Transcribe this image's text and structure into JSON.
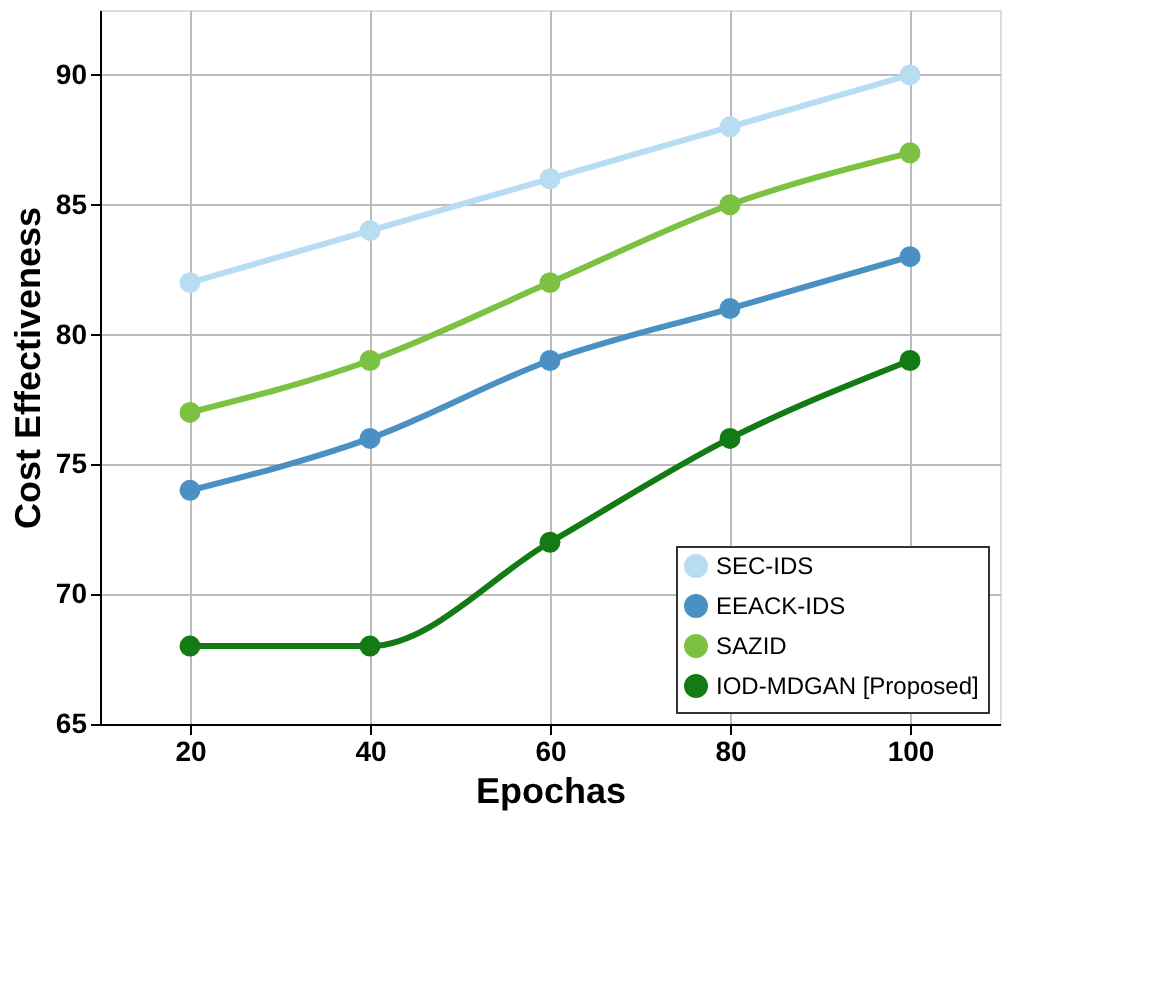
{
  "chart_data": {
    "type": "line",
    "xlabel": "Epochas",
    "ylabel": "Cost  Effectiveness",
    "x": [
      20,
      40,
      60,
      80,
      100
    ],
    "xlim": [
      10,
      110
    ],
    "xticks": [
      20,
      40,
      60,
      80,
      100
    ],
    "ylim": [
      65,
      92.5
    ],
    "yticks": [
      65,
      70,
      75,
      80,
      85,
      90
    ],
    "grid": true,
    "legend": "bottom right",
    "marker": "circle",
    "line_style": "solid",
    "series": [
      {
        "name": "SEC-IDS",
        "color": "#b8dcf2",
        "values": [
          82,
          84,
          86,
          88,
          90
        ]
      },
      {
        "name": "EEACK-IDS",
        "color": "#4a90c2",
        "values": [
          74,
          76,
          79,
          81,
          83
        ]
      },
      {
        "name": "SAZID",
        "color": "#7cc142",
        "values": [
          77,
          79,
          82,
          85,
          87
        ]
      },
      {
        "name": "IOD-MDGAN [Proposed]",
        "color": "#147a14",
        "values": [
          68,
          68,
          72,
          76,
          79
        ]
      }
    ]
  }
}
